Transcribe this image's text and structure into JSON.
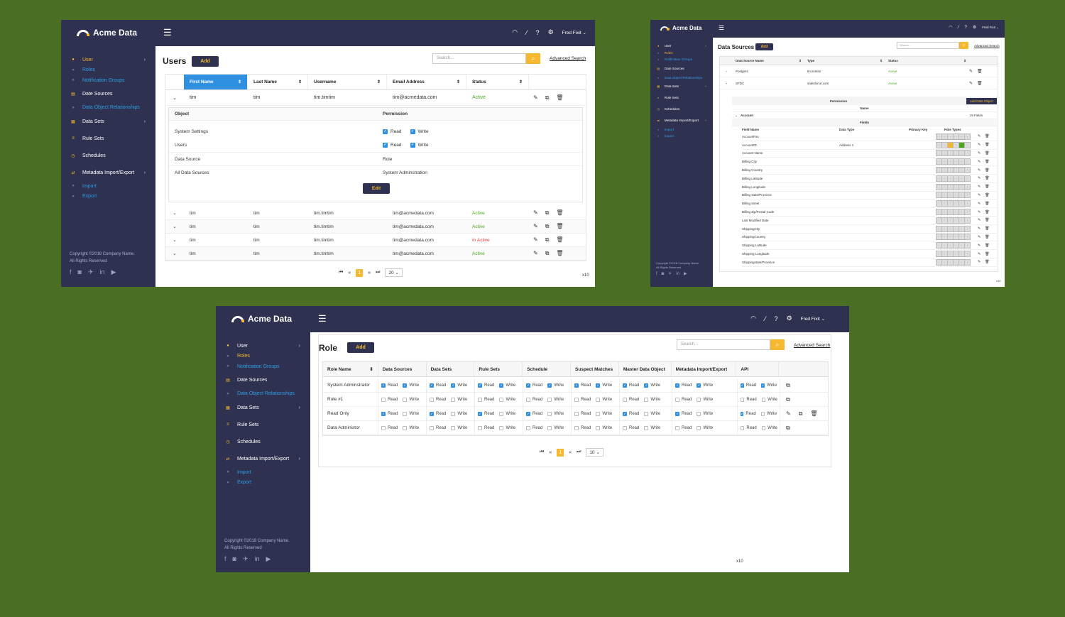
{
  "brand": "Acme Data",
  "user": "Fred Fixit",
  "nav": [
    {
      "label": "User",
      "icon": "user-icon",
      "chev": true,
      "sub": false
    },
    {
      "label": "Roles",
      "icon": "chevrons-right-icon",
      "chev": false,
      "sub": true
    },
    {
      "label": "Notification Groups",
      "icon": "chevrons-right-icon",
      "chev": false,
      "sub": true
    },
    {
      "label": "Date Sources",
      "icon": "database-icon",
      "chev": false,
      "sub": false
    },
    {
      "label": "Data Object Relationships",
      "icon": "chevrons-right-icon",
      "chev": false,
      "sub": true
    },
    {
      "label": "Data Sets",
      "icon": "grid-icon",
      "chev": true,
      "sub": false
    },
    {
      "label": "Rule Sets",
      "icon": "list-icon",
      "chev": false,
      "sub": false
    },
    {
      "label": "Schedules",
      "icon": "clock-icon",
      "chev": false,
      "sub": false
    },
    {
      "label": "Metadata Import/Export",
      "icon": "sync-icon",
      "chev": true,
      "sub": false
    },
    {
      "label": "Import",
      "icon": "chevrons-right-icon",
      "chev": false,
      "sub": true
    },
    {
      "label": "Export",
      "icon": "chevrons-right-icon",
      "chev": false,
      "sub": true
    }
  ],
  "footer": {
    "line1": "Copyright ©2018 Company Name.",
    "line2": "All Rights Reserved"
  },
  "common": {
    "add": "Add",
    "search_placeholder": "Search...",
    "advanced": "Advanced Search",
    "page": "1"
  },
  "users": {
    "title": "Users",
    "columns": [
      "First Name",
      "Last Name",
      "Username",
      "Email Address",
      "Status"
    ],
    "expanded": {
      "first": "tim",
      "last": "tim",
      "username": "tim.timtim",
      "email": "tim@acmedata.com",
      "status": "Active"
    },
    "perm_header": {
      "object": "Object",
      "permission": "Permission"
    },
    "perms": [
      {
        "object": "System Settings",
        "read": "Read",
        "write": "Write"
      },
      {
        "object": "Users",
        "read": "Read",
        "write": "Write"
      }
    ],
    "extra": [
      {
        "object": "Data Source",
        "value": "Role"
      },
      {
        "object": "All Data Sources",
        "value": "System Adminstration"
      }
    ],
    "edit": "Edit",
    "rows": [
      {
        "first": "tim",
        "last": "tim",
        "username": "tim.timtim",
        "email": "tim@acmedata.com",
        "status": "Active",
        "ok": true
      },
      {
        "first": "tim",
        "last": "tim",
        "username": "tim.timtim",
        "email": "tim@acmedata.com",
        "status": "Active",
        "ok": true
      },
      {
        "first": "tim",
        "last": "tim",
        "username": "tim.timtim",
        "email": "tim@acmedata.com",
        "status": "In Active",
        "ok": false
      },
      {
        "first": "tim",
        "last": "tim",
        "username": "tim.timtim",
        "email": "tim@acmedata.com",
        "status": "Active",
        "ok": true
      }
    ],
    "per_page": "20",
    "x10": "x10"
  },
  "ds": {
    "title": "Data Sources",
    "columns": [
      "Data Source Name",
      "Type",
      "Status"
    ],
    "rows": [
      {
        "name": "Postgers",
        "type": "tim.timtim",
        "status": "Active"
      },
      {
        "name": "SFDC",
        "type": "salesforce.com",
        "status": "Active"
      }
    ],
    "permission": "Permission",
    "add_object": "Add Data Object",
    "name_hdr": "Name",
    "account": "Account",
    "fields_count": "19 Fields",
    "fields_hdr": "Fields",
    "field_cols": [
      "Field Name",
      "Data Type",
      "Primary Key",
      "Role Types"
    ],
    "fields": [
      {
        "name": "AccountFax",
        "type": ""
      },
      {
        "name": "AccountID",
        "type": "Address 1"
      },
      {
        "name": "Account Name",
        "type": ""
      },
      {
        "name": "Billing City",
        "type": ""
      },
      {
        "name": "Billing Country",
        "type": ""
      },
      {
        "name": "Billing Latitude",
        "type": ""
      },
      {
        "name": "Billing Longitude",
        "type": ""
      },
      {
        "name": "Billing state/Province",
        "type": ""
      },
      {
        "name": "Billing street",
        "type": ""
      },
      {
        "name": "Billing Zip/Postal Code",
        "type": ""
      },
      {
        "name": "Last Modified Date",
        "type": ""
      },
      {
        "name": "ShippingCity",
        "type": ""
      },
      {
        "name": "ShippingCountry",
        "type": ""
      },
      {
        "name": "Shipping Latitude",
        "type": ""
      },
      {
        "name": "Shipping Longitude",
        "type": ""
      },
      {
        "name": "Shippingstate/Province",
        "type": ""
      }
    ],
    "x10": "x10"
  },
  "role": {
    "title": "Role",
    "columns": [
      "Role Name",
      "Data Sources",
      "Data Sets",
      "Rule Sets",
      "Schedule",
      "Suspect Matches",
      "Master Data Object",
      "Metadata Import/Export",
      "API"
    ],
    "read": "Read",
    "write": "Write",
    "rows": [
      {
        "name": "System Adminstrator",
        "checks": [
          1,
          1,
          1,
          1,
          1,
          1,
          1,
          1,
          1,
          1,
          1,
          1,
          1,
          1,
          1,
          1
        ],
        "actions": [
          "copy"
        ]
      },
      {
        "name": "Role #1",
        "checks": [
          0,
          0,
          0,
          0,
          0,
          0,
          0,
          0,
          0,
          0,
          0,
          0,
          0,
          0,
          0,
          0
        ],
        "actions": [
          "copy"
        ]
      },
      {
        "name": "Read Only",
        "checks": [
          1,
          0,
          1,
          0,
          1,
          0,
          1,
          0,
          0,
          0,
          1,
          0,
          1,
          0,
          1,
          0
        ],
        "actions": [
          "edit",
          "copy",
          "delete"
        ]
      },
      {
        "name": "Data Administor",
        "checks": [
          0,
          0,
          0,
          0,
          0,
          0,
          0,
          0,
          0,
          0,
          0,
          0,
          0,
          0,
          0,
          0
        ],
        "actions": [
          "copy"
        ]
      }
    ],
    "per_page": "10",
    "x10": "x10"
  },
  "colors": {
    "sidebar": "#2e3150",
    "accent": "#f5b82e",
    "link": "#2f9fe6",
    "active": "#4aa81c",
    "inactive": "#e53935",
    "background": "#4b6e25"
  }
}
